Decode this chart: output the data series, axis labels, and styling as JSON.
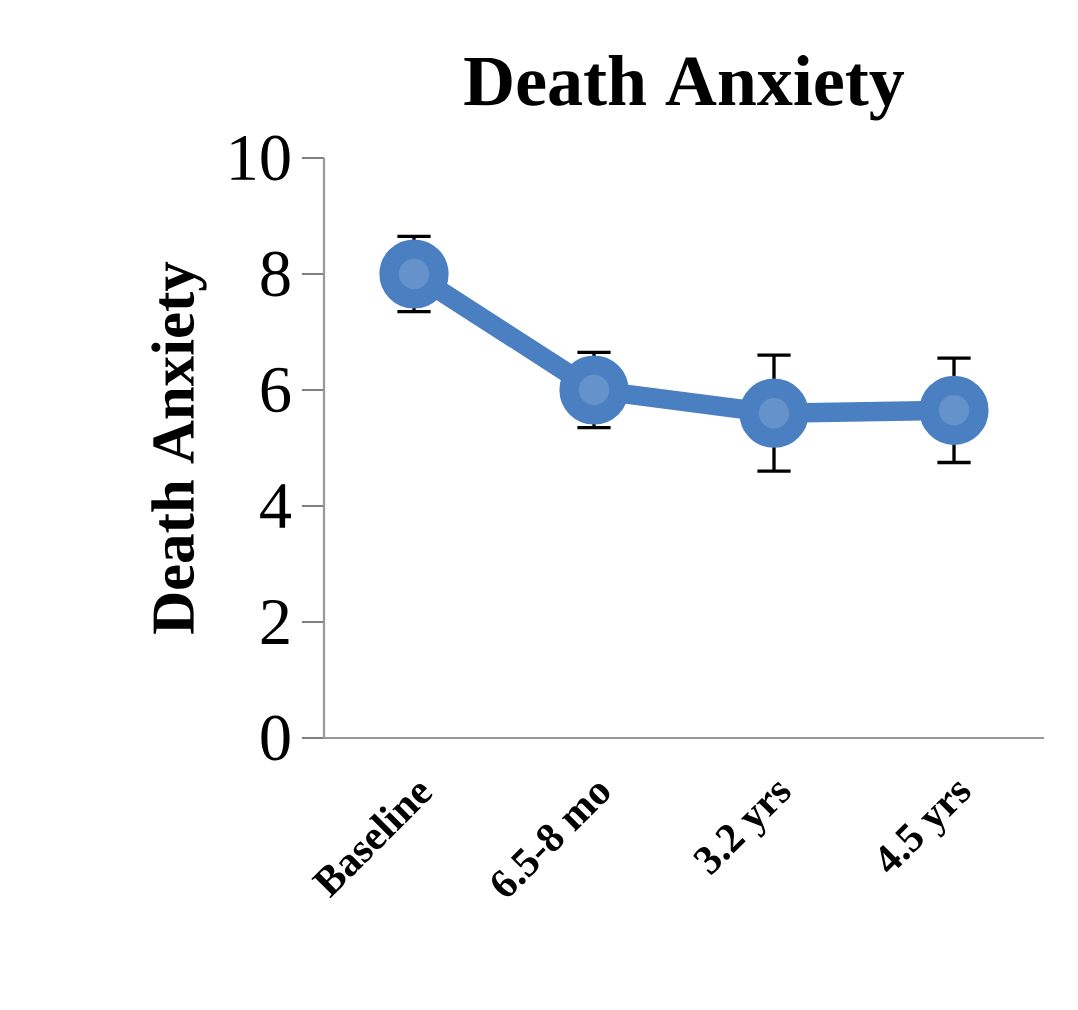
{
  "chart_data": {
    "type": "line",
    "title": "Death Anxiety",
    "ylabel": "Death Anxiety",
    "categories": [
      "Baseline",
      "6.5-8 mo",
      "3.2 yrs",
      "4.5 yrs"
    ],
    "series": [
      {
        "color": "#4a7fc1",
        "values": [
          8.0,
          6.0,
          5.6,
          5.65
        ],
        "errors": [
          0.65,
          0.65,
          1.0,
          0.9
        ]
      }
    ],
    "ylim": [
      0,
      10
    ],
    "yticks": [
      0,
      2,
      4,
      6,
      8,
      10
    ],
    "marker": "circle",
    "line_style": "solid",
    "grid": false
  }
}
